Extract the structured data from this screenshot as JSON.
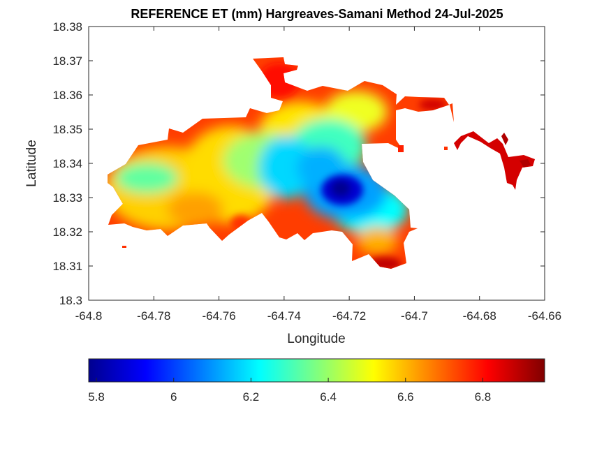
{
  "title": "REFERENCE ET (mm) Hargreaves-Samani Method  24-Jul-2025",
  "chart_data": {
    "type": "heatmap",
    "title": "REFERENCE ET (mm) Hargreaves-Samani Method  24-Jul-2025",
    "xlabel": "Longitude",
    "ylabel": "Latitude",
    "xlim": [
      -64.8,
      -64.66
    ],
    "ylim": [
      18.3,
      18.38
    ],
    "xticks": [
      -64.8,
      -64.78,
      -64.76,
      -64.74,
      -64.72,
      -64.7,
      -64.68,
      -64.66
    ],
    "xtick_labels": [
      "-64.8",
      "-64.78",
      "-64.76",
      "-64.74",
      "-64.72",
      "-64.7",
      "-64.68",
      "-64.66"
    ],
    "yticks": [
      18.3,
      18.31,
      18.32,
      18.33,
      18.34,
      18.35,
      18.36,
      18.37,
      18.38
    ],
    "ytick_labels": [
      "18.3",
      "18.31",
      "18.32",
      "18.33",
      "18.34",
      "18.35",
      "18.36",
      "18.37",
      "18.38"
    ],
    "colormap": "jet",
    "colorbar": {
      "orientation": "horizontal",
      "range": [
        5.78,
        6.96
      ],
      "ticks": [
        5.8,
        6,
        6.2,
        6.4,
        6.6,
        6.8
      ],
      "tick_labels": [
        "5.8",
        "6",
        "6.2",
        "6.4",
        "6.6",
        "6.8"
      ]
    },
    "value_range": [
      5.8,
      6.95
    ],
    "minimum_region": {
      "lon": -64.723,
      "lat": 18.332,
      "value": 5.8
    },
    "maximum_regions": [
      {
        "lon": -64.67,
        "lat": 18.339,
        "value": 6.95
      },
      {
        "lon": -64.7,
        "lat": 18.357,
        "value": 6.9
      },
      {
        "lon": -64.713,
        "lat": 18.31,
        "value": 6.9
      }
    ],
    "grid": false
  }
}
